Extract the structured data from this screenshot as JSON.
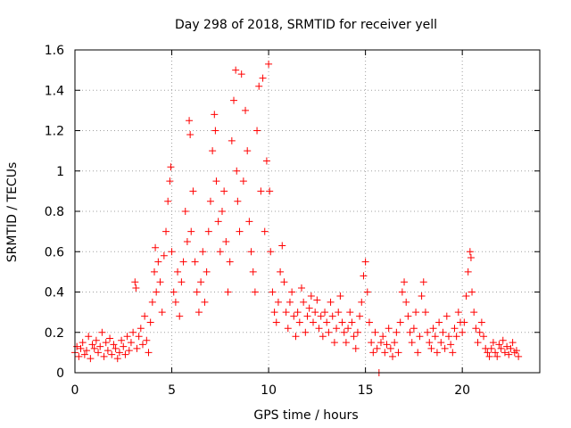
{
  "chart_data": {
    "type": "scatter",
    "title": "Day 298 of 2018, SRMTID for receiver yell",
    "xlabel": "GPS time / hours",
    "ylabel": "SRMTID / TECUs",
    "xlim": [
      0,
      24
    ],
    "ylim": [
      0,
      1.6
    ],
    "xticks": [
      0,
      5,
      10,
      15,
      20
    ],
    "xtick_labels": [
      "0",
      "5",
      "10",
      "15",
      "20"
    ],
    "yticks": [
      0,
      0.2,
      0.4,
      0.6,
      0.8,
      1.0,
      1.2,
      1.4,
      1.6
    ],
    "ytick_labels": [
      "0",
      "0.2",
      "0.4",
      "0.6",
      "0.8",
      "1",
      "1.2",
      "1.4",
      "1.6"
    ],
    "grid": true,
    "marker": "+",
    "color": "#ff0000",
    "series": [
      {
        "name": "SRMTID",
        "points": [
          [
            0.0,
            0.1
          ],
          [
            0.1,
            0.13
          ],
          [
            0.2,
            0.08
          ],
          [
            0.3,
            0.12
          ],
          [
            0.4,
            0.15
          ],
          [
            0.5,
            0.09
          ],
          [
            0.6,
            0.11
          ],
          [
            0.7,
            0.18
          ],
          [
            0.8,
            0.07
          ],
          [
            0.9,
            0.14
          ],
          [
            1.0,
            0.12
          ],
          [
            1.1,
            0.16
          ],
          [
            1.2,
            0.1
          ],
          [
            1.3,
            0.13
          ],
          [
            1.4,
            0.2
          ],
          [
            1.5,
            0.08
          ],
          [
            1.6,
            0.15
          ],
          [
            1.7,
            0.11
          ],
          [
            1.8,
            0.17
          ],
          [
            1.9,
            0.09
          ],
          [
            2.0,
            0.14
          ],
          [
            2.1,
            0.12
          ],
          [
            2.2,
            0.07
          ],
          [
            2.3,
            0.1
          ],
          [
            2.4,
            0.16
          ],
          [
            2.5,
            0.13
          ],
          [
            2.6,
            0.09
          ],
          [
            2.7,
            0.18
          ],
          [
            2.8,
            0.11
          ],
          [
            2.9,
            0.15
          ],
          [
            3.0,
            0.2
          ],
          [
            3.1,
            0.45
          ],
          [
            3.15,
            0.42
          ],
          [
            3.2,
            0.12
          ],
          [
            3.3,
            0.18
          ],
          [
            3.4,
            0.22
          ],
          [
            3.5,
            0.14
          ],
          [
            3.6,
            0.28
          ],
          [
            3.7,
            0.16
          ],
          [
            3.8,
            0.1
          ],
          [
            3.9,
            0.25
          ],
          [
            4.0,
            0.35
          ],
          [
            4.1,
            0.5
          ],
          [
            4.15,
            0.62
          ],
          [
            4.2,
            0.4
          ],
          [
            4.3,
            0.55
          ],
          [
            4.4,
            0.45
          ],
          [
            4.5,
            0.3
          ],
          [
            4.6,
            0.58
          ],
          [
            4.7,
            0.7
          ],
          [
            4.8,
            0.85
          ],
          [
            4.9,
            0.95
          ],
          [
            4.95,
            1.02
          ],
          [
            5.0,
            0.6
          ],
          [
            5.1,
            0.4
          ],
          [
            5.2,
            0.35
          ],
          [
            5.3,
            0.5
          ],
          [
            5.4,
            0.28
          ],
          [
            5.5,
            0.45
          ],
          [
            5.6,
            0.55
          ],
          [
            5.7,
            0.8
          ],
          [
            5.8,
            0.65
          ],
          [
            5.9,
            1.25
          ],
          [
            5.95,
            1.18
          ],
          [
            6.0,
            0.7
          ],
          [
            6.1,
            0.9
          ],
          [
            6.2,
            0.55
          ],
          [
            6.3,
            0.4
          ],
          [
            6.4,
            0.3
          ],
          [
            6.5,
            0.45
          ],
          [
            6.6,
            0.6
          ],
          [
            6.7,
            0.35
          ],
          [
            6.8,
            0.5
          ],
          [
            6.9,
            0.7
          ],
          [
            7.0,
            0.85
          ],
          [
            7.1,
            1.1
          ],
          [
            7.2,
            1.28
          ],
          [
            7.25,
            1.2
          ],
          [
            7.3,
            0.95
          ],
          [
            7.4,
            0.75
          ],
          [
            7.5,
            0.6
          ],
          [
            7.6,
            0.8
          ],
          [
            7.7,
            0.9
          ],
          [
            7.8,
            0.65
          ],
          [
            7.9,
            0.4
          ],
          [
            8.0,
            0.55
          ],
          [
            8.1,
            1.15
          ],
          [
            8.2,
            1.35
          ],
          [
            8.3,
            1.5
          ],
          [
            8.35,
            1.0
          ],
          [
            8.4,
            0.85
          ],
          [
            8.5,
            0.7
          ],
          [
            8.6,
            1.48
          ],
          [
            8.7,
            0.95
          ],
          [
            8.8,
            1.3
          ],
          [
            8.9,
            1.1
          ],
          [
            9.0,
            0.75
          ],
          [
            9.1,
            0.6
          ],
          [
            9.2,
            0.5
          ],
          [
            9.3,
            0.4
          ],
          [
            9.4,
            1.2
          ],
          [
            9.5,
            1.42
          ],
          [
            9.6,
            0.9
          ],
          [
            9.7,
            1.46
          ],
          [
            9.8,
            0.7
          ],
          [
            9.9,
            1.05
          ],
          [
            10.0,
            1.53
          ],
          [
            10.05,
            0.9
          ],
          [
            10.1,
            0.6
          ],
          [
            10.2,
            0.4
          ],
          [
            10.3,
            0.3
          ],
          [
            10.4,
            0.25
          ],
          [
            10.5,
            0.35
          ],
          [
            10.6,
            0.5
          ],
          [
            10.7,
            0.63
          ],
          [
            10.8,
            0.45
          ],
          [
            10.9,
            0.3
          ],
          [
            11.0,
            0.22
          ],
          [
            11.1,
            0.35
          ],
          [
            11.2,
            0.4
          ],
          [
            11.3,
            0.28
          ],
          [
            11.4,
            0.18
          ],
          [
            11.5,
            0.3
          ],
          [
            11.6,
            0.25
          ],
          [
            11.7,
            0.42
          ],
          [
            11.8,
            0.35
          ],
          [
            11.9,
            0.2
          ],
          [
            12.0,
            0.28
          ],
          [
            12.1,
            0.32
          ],
          [
            12.2,
            0.38
          ],
          [
            12.3,
            0.25
          ],
          [
            12.4,
            0.3
          ],
          [
            12.5,
            0.36
          ],
          [
            12.6,
            0.22
          ],
          [
            12.7,
            0.28
          ],
          [
            12.8,
            0.18
          ],
          [
            12.9,
            0.3
          ],
          [
            13.0,
            0.25
          ],
          [
            13.1,
            0.2
          ],
          [
            13.2,
            0.35
          ],
          [
            13.3,
            0.28
          ],
          [
            13.4,
            0.15
          ],
          [
            13.5,
            0.22
          ],
          [
            13.6,
            0.3
          ],
          [
            13.7,
            0.38
          ],
          [
            13.8,
            0.25
          ],
          [
            13.9,
            0.2
          ],
          [
            14.0,
            0.15
          ],
          [
            14.1,
            0.22
          ],
          [
            14.2,
            0.3
          ],
          [
            14.3,
            0.25
          ],
          [
            14.4,
            0.18
          ],
          [
            14.5,
            0.12
          ],
          [
            14.6,
            0.2
          ],
          [
            14.7,
            0.28
          ],
          [
            14.8,
            0.35
          ],
          [
            14.9,
            0.48
          ],
          [
            15.0,
            0.55
          ],
          [
            15.1,
            0.4
          ],
          [
            15.2,
            0.25
          ],
          [
            15.3,
            0.15
          ],
          [
            15.4,
            0.1
          ],
          [
            15.5,
            0.2
          ],
          [
            15.6,
            0.12
          ],
          [
            15.7,
            0.0
          ],
          [
            15.8,
            0.15
          ],
          [
            15.9,
            0.18
          ],
          [
            16.0,
            0.1
          ],
          [
            16.1,
            0.14
          ],
          [
            16.2,
            0.22
          ],
          [
            16.3,
            0.12
          ],
          [
            16.4,
            0.08
          ],
          [
            16.5,
            0.15
          ],
          [
            16.6,
            0.2
          ],
          [
            16.7,
            0.1
          ],
          [
            16.8,
            0.25
          ],
          [
            16.9,
            0.4
          ],
          [
            17.0,
            0.45
          ],
          [
            17.1,
            0.35
          ],
          [
            17.2,
            0.28
          ],
          [
            17.3,
            0.2
          ],
          [
            17.4,
            0.15
          ],
          [
            17.5,
            0.22
          ],
          [
            17.6,
            0.3
          ],
          [
            17.7,
            0.1
          ],
          [
            17.8,
            0.18
          ],
          [
            17.9,
            0.38
          ],
          [
            18.0,
            0.45
          ],
          [
            18.1,
            0.3
          ],
          [
            18.2,
            0.2
          ],
          [
            18.3,
            0.15
          ],
          [
            18.4,
            0.12
          ],
          [
            18.5,
            0.22
          ],
          [
            18.6,
            0.18
          ],
          [
            18.7,
            0.1
          ],
          [
            18.8,
            0.25
          ],
          [
            18.9,
            0.15
          ],
          [
            19.0,
            0.2
          ],
          [
            19.1,
            0.12
          ],
          [
            19.2,
            0.28
          ],
          [
            19.3,
            0.18
          ],
          [
            19.4,
            0.14
          ],
          [
            19.5,
            0.1
          ],
          [
            19.6,
            0.22
          ],
          [
            19.7,
            0.18
          ],
          [
            19.8,
            0.3
          ],
          [
            19.9,
            0.25
          ],
          [
            20.0,
            0.2
          ],
          [
            20.1,
            0.25
          ],
          [
            20.2,
            0.38
          ],
          [
            20.3,
            0.5
          ],
          [
            20.4,
            0.6
          ],
          [
            20.45,
            0.57
          ],
          [
            20.5,
            0.4
          ],
          [
            20.6,
            0.3
          ],
          [
            20.7,
            0.22
          ],
          [
            20.8,
            0.15
          ],
          [
            20.9,
            0.2
          ],
          [
            21.0,
            0.25
          ],
          [
            21.1,
            0.18
          ],
          [
            21.2,
            0.12
          ],
          [
            21.3,
            0.1
          ],
          [
            21.4,
            0.08
          ],
          [
            21.5,
            0.12
          ],
          [
            21.6,
            0.15
          ],
          [
            21.7,
            0.1
          ],
          [
            21.8,
            0.08
          ],
          [
            21.9,
            0.14
          ],
          [
            22.0,
            0.12
          ],
          [
            22.1,
            0.16
          ],
          [
            22.2,
            0.1
          ],
          [
            22.3,
            0.13
          ],
          [
            22.4,
            0.09
          ],
          [
            22.5,
            0.12
          ],
          [
            22.6,
            0.15
          ],
          [
            22.7,
            0.1
          ],
          [
            22.8,
            0.11
          ],
          [
            22.9,
            0.08
          ]
        ]
      }
    ]
  }
}
